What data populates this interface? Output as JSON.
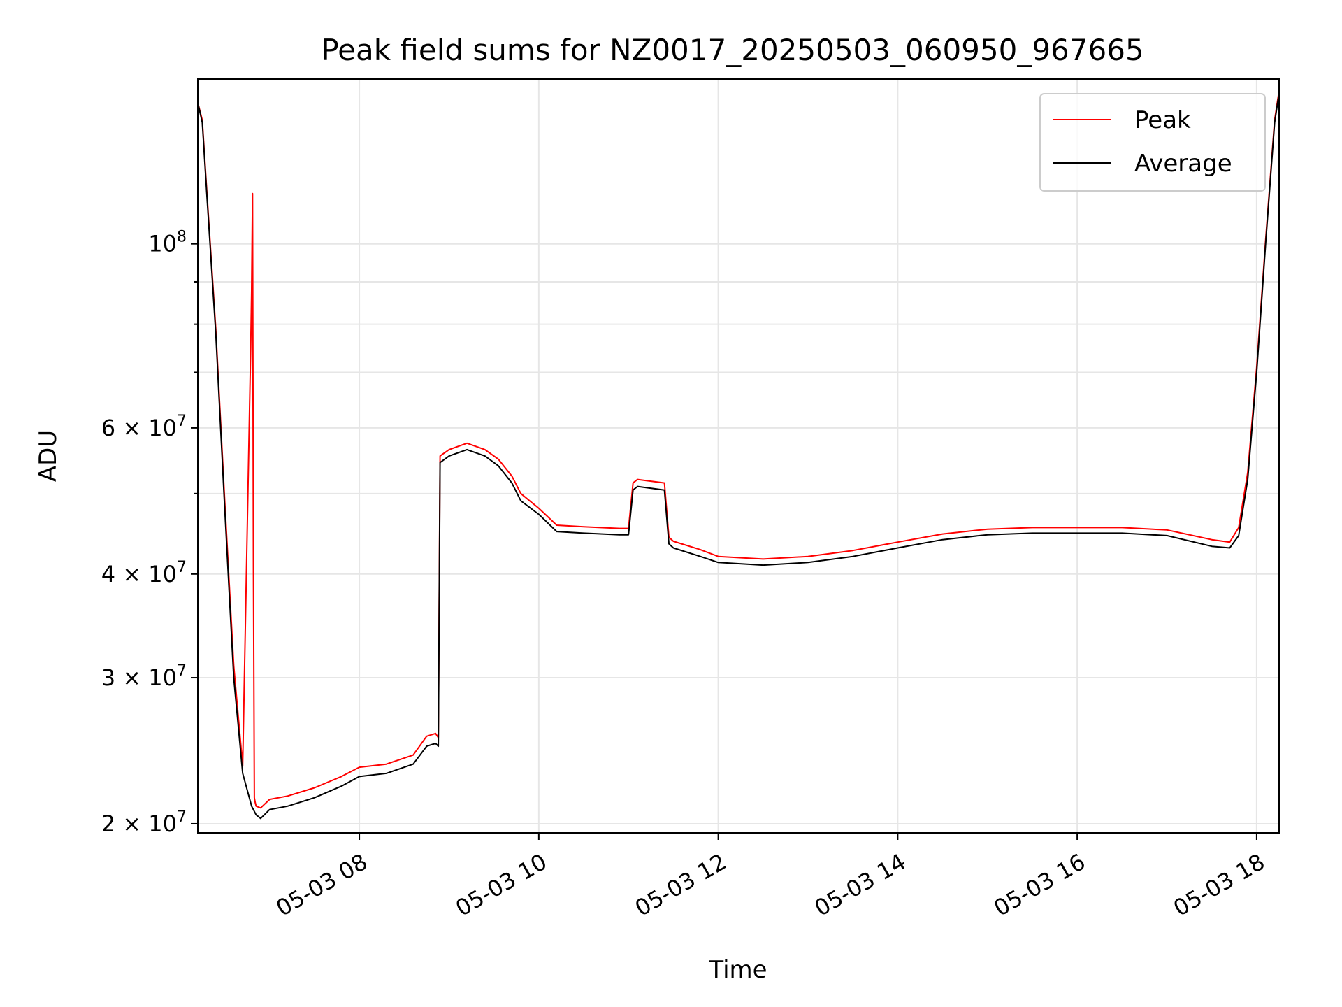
{
  "chart_data": {
    "type": "line",
    "title": "Peak field sums for NZ0017_20250503_060950_967665",
    "xlabel": "Time",
    "ylabel": "ADU",
    "yscale": "log",
    "xlim_hours": [
      6.2,
      18.25
    ],
    "ylim": [
      19500000,
      158000000
    ],
    "grid": true,
    "legend_position": "upper right",
    "x_ticks": [
      {
        "value": 8,
        "label": "05-03 08"
      },
      {
        "value": 10,
        "label": "05-03 10"
      },
      {
        "value": 12,
        "label": "05-03 12"
      },
      {
        "value": 14,
        "label": "05-03 14"
      },
      {
        "value": 16,
        "label": "05-03 16"
      },
      {
        "value": 18,
        "label": "05-03 18"
      }
    ],
    "y_ticks": [
      {
        "value": 20000000,
        "mantissa": "2",
        "exponent": "7",
        "labeled": true
      },
      {
        "value": 30000000,
        "mantissa": "3",
        "exponent": "7",
        "labeled": true
      },
      {
        "value": 40000000,
        "mantissa": "4",
        "exponent": "7",
        "labeled": true
      },
      {
        "value": 50000000,
        "labeled": false
      },
      {
        "value": 60000000,
        "mantissa": "6",
        "exponent": "7",
        "labeled": true
      },
      {
        "value": 70000000,
        "labeled": false
      },
      {
        "value": 80000000,
        "labeled": false
      },
      {
        "value": 90000000,
        "labeled": false
      },
      {
        "value": 100000000,
        "mantissa": "",
        "exponent": "8",
        "labeled": true
      }
    ],
    "times_note_unit": "hour of day",
    "series": [
      {
        "name": "Average",
        "color": "#000000",
        "x": [
          6.2,
          6.25,
          6.3,
          6.4,
          6.5,
          6.6,
          6.7,
          6.8,
          6.85,
          6.9,
          7.0,
          7.2,
          7.5,
          7.8,
          8.0,
          8.3,
          8.6,
          8.75,
          8.85,
          8.88,
          8.9,
          9.0,
          9.2,
          9.4,
          9.55,
          9.7,
          9.8,
          10.0,
          10.2,
          10.5,
          10.9,
          11.0,
          11.05,
          11.1,
          11.4,
          11.45,
          11.5,
          11.8,
          12.0,
          12.5,
          13.0,
          13.5,
          14.0,
          14.5,
          15.0,
          15.5,
          16.0,
          16.5,
          17.0,
          17.5,
          17.7,
          17.8,
          17.9,
          18.0,
          18.1,
          18.2,
          18.25
        ],
        "y": [
          148000000,
          140000000,
          115000000,
          78000000,
          48000000,
          30000000,
          23000000,
          21000000,
          20500000,
          20300000,
          20800000,
          21000000,
          21500000,
          22200000,
          22800000,
          23000000,
          23600000,
          24800000,
          25000000,
          24800000,
          54500000,
          55500000,
          56500000,
          55500000,
          54000000,
          51500000,
          49000000,
          47200000,
          45000000,
          44800000,
          44600000,
          44600000,
          50500000,
          51000000,
          50500000,
          43500000,
          43000000,
          42000000,
          41300000,
          41000000,
          41300000,
          42000000,
          43000000,
          44000000,
          44600000,
          44800000,
          44800000,
          44800000,
          44500000,
          43200000,
          43000000,
          44500000,
          52000000,
          70000000,
          100000000,
          140000000,
          152000000
        ]
      },
      {
        "name": "Peak",
        "color": "#ff0000",
        "x": [
          6.2,
          6.25,
          6.3,
          6.4,
          6.5,
          6.6,
          6.7,
          6.79,
          6.8,
          6.81,
          6.82,
          6.83,
          6.84,
          6.85,
          6.9,
          7.0,
          7.2,
          7.5,
          7.8,
          8.0,
          8.3,
          8.6,
          8.75,
          8.85,
          8.88,
          8.9,
          9.0,
          9.2,
          9.4,
          9.55,
          9.7,
          9.8,
          10.0,
          10.2,
          10.5,
          10.9,
          11.0,
          11.05,
          11.1,
          11.4,
          11.45,
          11.5,
          11.8,
          12.0,
          12.5,
          13.0,
          13.5,
          14.0,
          14.5,
          15.0,
          15.5,
          16.0,
          16.5,
          17.0,
          17.5,
          17.7,
          17.8,
          17.9,
          18.0,
          18.1,
          18.2,
          18.25
        ],
        "y": [
          148000000,
          141000000,
          116000000,
          79000000,
          49000000,
          31000000,
          23500000,
          75000000,
          88000000,
          115000000,
          40000000,
          21500000,
          21200000,
          21000000,
          20900000,
          21400000,
          21600000,
          22100000,
          22800000,
          23400000,
          23600000,
          24200000,
          25500000,
          25700000,
          25400000,
          55500000,
          56500000,
          57500000,
          56500000,
          55000000,
          52500000,
          50000000,
          48000000,
          45800000,
          45600000,
          45400000,
          45400000,
          51500000,
          52000000,
          51500000,
          44300000,
          43800000,
          42800000,
          42000000,
          41700000,
          42000000,
          42700000,
          43700000,
          44700000,
          45300000,
          45500000,
          45500000,
          45500000,
          45200000,
          44000000,
          43700000,
          45500000,
          53000000,
          71000000,
          101000000,
          141000000,
          153000000
        ]
      }
    ]
  }
}
